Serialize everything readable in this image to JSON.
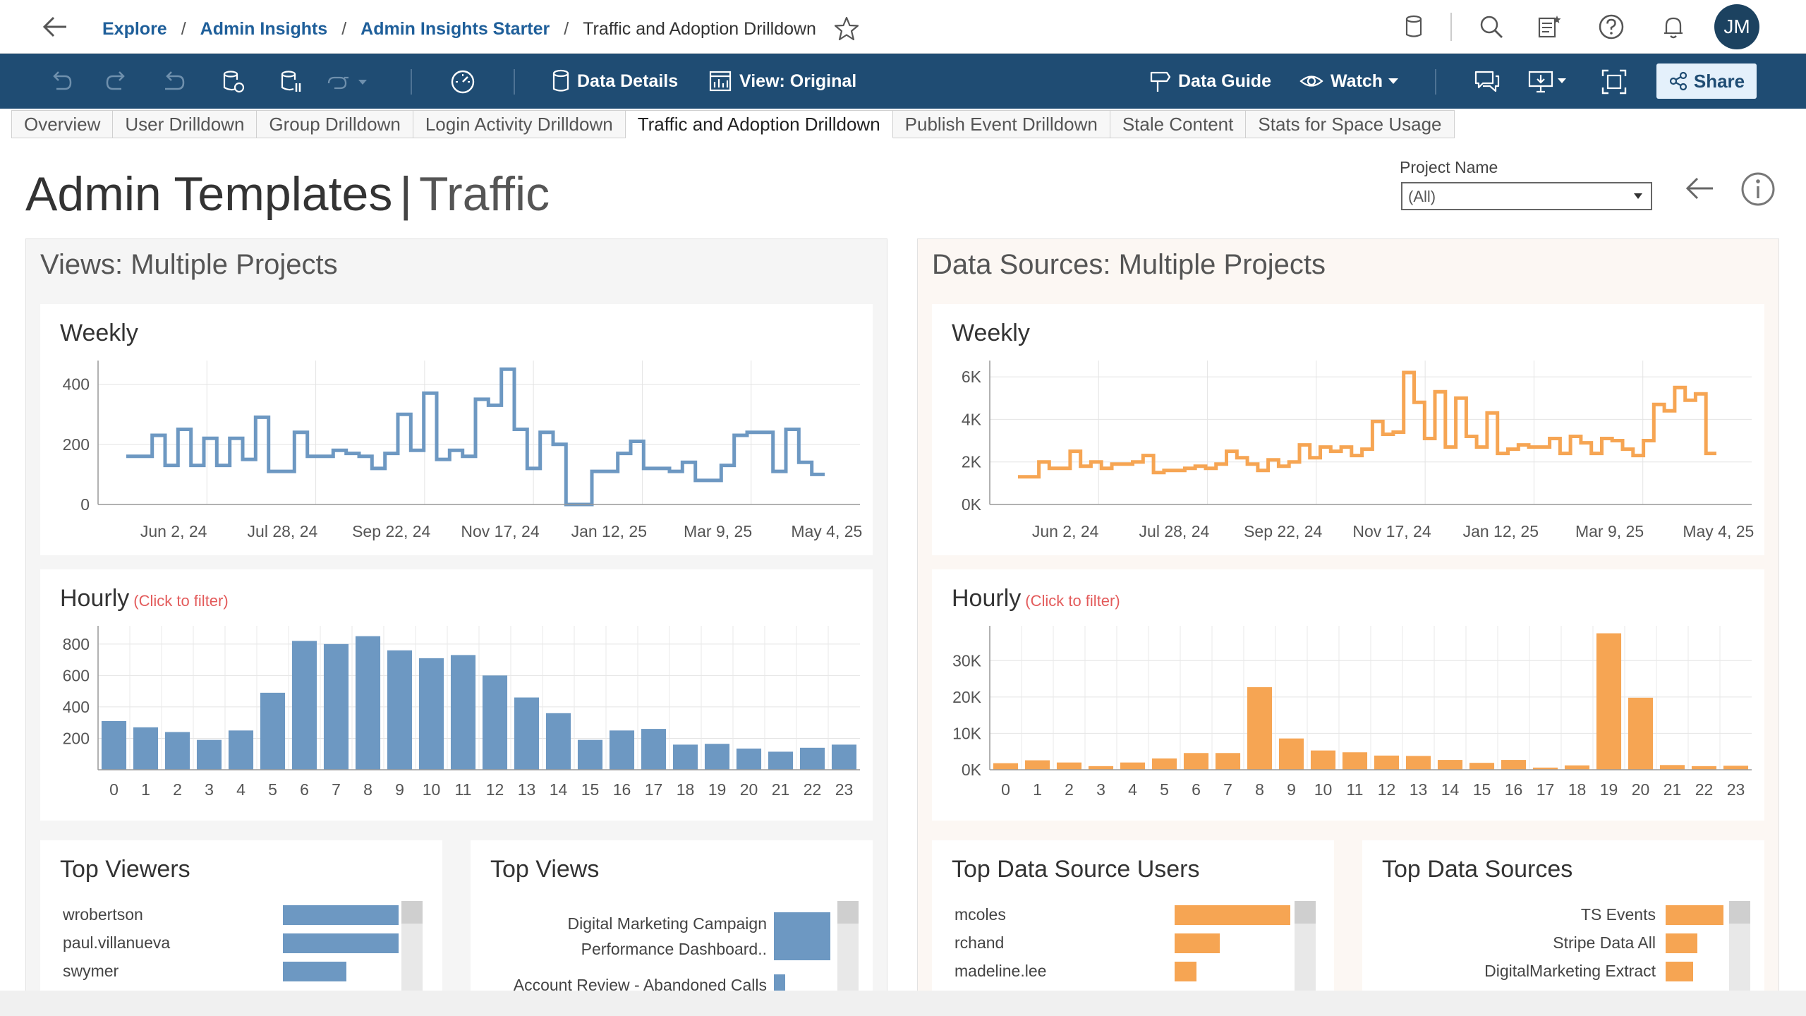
{
  "breadcrumb": {
    "items": [
      "Explore",
      "Admin Insights",
      "Admin Insights Starter"
    ],
    "current": "Traffic and Adoption Drilldown",
    "separator": "/"
  },
  "user": {
    "initials": "JM"
  },
  "toolbar": {
    "data_details": "Data Details",
    "view": "View: Original",
    "data_guide": "Data Guide",
    "watch": "Watch",
    "share": "Share"
  },
  "tabs": [
    {
      "label": "Overview",
      "active": false
    },
    {
      "label": "User Drilldown",
      "active": false
    },
    {
      "label": "Group Drilldown",
      "active": false
    },
    {
      "label": "Login Activity Drilldown",
      "active": false
    },
    {
      "label": "Traffic and Adoption Drilldown",
      "active": true
    },
    {
      "label": "Publish Event Drilldown",
      "active": false
    },
    {
      "label": "Stale Content",
      "active": false
    },
    {
      "label": "Stats for Space Usage",
      "active": false
    }
  ],
  "dashboard": {
    "title": "Admin Templates",
    "title_sep": "|",
    "subtitle": "Traffic",
    "project_filter": {
      "label": "Project Name",
      "value": "(All)"
    }
  },
  "colors": {
    "blue": "#6d98c2",
    "orange": "#f6a553",
    "navy": "#1f4c73",
    "link": "#1f5f9a"
  },
  "views": {
    "title": "Views: Multiple Projects",
    "weekly_title": "Weekly",
    "hourly_title": "Hourly",
    "hourly_hint": "(Click to filter)",
    "top_viewers_title": "Top Viewers",
    "top_viewers": [
      {
        "name": "wrobertson",
        "value": 100
      },
      {
        "name": "paul.villanueva",
        "value": 100
      },
      {
        "name": "swymer",
        "value": 55
      }
    ],
    "top_views_title": "Top Views",
    "top_views": [
      {
        "name": "Digital Marketing Campaign",
        "name2": "Performance Dashboard..",
        "value": 100
      },
      {
        "name": "Account Review - Abandoned Calls",
        "name2": "",
        "value": 20
      }
    ]
  },
  "datasources": {
    "title": "Data Sources: Multiple Projects",
    "weekly_title": "Weekly",
    "hourly_title": "Hourly",
    "hourly_hint": "(Click to filter)",
    "top_users_title": "Top Data Source Users",
    "top_users": [
      {
        "name": "mcoles",
        "value": 100
      },
      {
        "name": "rchand",
        "value": 39
      },
      {
        "name": "madeline.lee",
        "value": 19
      }
    ],
    "top_sources_title": "Top Data Sources",
    "top_sources": [
      {
        "name": "TS Events",
        "value": 100
      },
      {
        "name": "Stripe Data All",
        "value": 55
      },
      {
        "name": "DigitalMarketing Extract",
        "value": 47
      }
    ]
  },
  "chart_data": [
    {
      "id": "views-weekly",
      "type": "line",
      "title": "Weekly",
      "step": true,
      "color": "#6d98c2",
      "ylim": [
        0,
        460
      ],
      "yticks": [
        0,
        200,
        400
      ],
      "ytick_labels": [
        "0",
        "200",
        "400"
      ],
      "x_tick_labels": [
        "Jun 2, 24",
        "Jul 28, 24",
        "Sep 22, 24",
        "Nov 17, 24",
        "Jan 12, 25",
        "Mar 9, 25",
        "May 4, 25"
      ],
      "values": [
        160,
        160,
        230,
        130,
        250,
        130,
        220,
        130,
        220,
        150,
        290,
        110,
        110,
        240,
        160,
        160,
        180,
        170,
        160,
        120,
        170,
        300,
        180,
        370,
        150,
        180,
        160,
        350,
        330,
        450,
        250,
        120,
        240,
        200,
        0,
        0,
        110,
        110,
        170,
        210,
        120,
        120,
        110,
        140,
        80,
        80,
        130,
        230,
        240,
        240,
        110,
        250,
        140,
        100
      ]
    },
    {
      "id": "ds-weekly",
      "type": "line",
      "title": "Weekly",
      "step": true,
      "color": "#f6a553",
      "ylim": [
        0,
        6500
      ],
      "yticks": [
        0,
        2000,
        4000,
        6000
      ],
      "ytick_labels": [
        "0K",
        "2K",
        "4K",
        "6K"
      ],
      "x_tick_labels": [
        "Jun 2, 24",
        "Jul 28, 24",
        "Sep 22, 24",
        "Nov 17, 24",
        "Jan 12, 25",
        "Mar 9, 25",
        "May 4, 25"
      ],
      "values": [
        1300,
        1300,
        2000,
        1700,
        1700,
        2500,
        1800,
        2000,
        1700,
        1900,
        1900,
        2000,
        2300,
        1500,
        1600,
        1600,
        1700,
        1800,
        1700,
        1900,
        2500,
        2200,
        1900,
        1600,
        2100,
        1800,
        2000,
        2800,
        2200,
        2700,
        2500,
        2700,
        2300,
        2600,
        3900,
        3300,
        3400,
        6200,
        4800,
        3100,
        5300,
        2700,
        5000,
        3200,
        2700,
        4300,
        2400,
        2600,
        2800,
        2700,
        2700,
        3100,
        2400,
        3200,
        2900,
        2400,
        3100,
        3000,
        2600,
        2300,
        3000,
        4700,
        4400,
        5500,
        4900,
        5200,
        2400
      ]
    },
    {
      "id": "views-hourly",
      "type": "bar",
      "title": "Hourly",
      "color": "#6d98c2",
      "ylim": [
        0,
        880
      ],
      "yticks": [
        200,
        400,
        600,
        800
      ],
      "ytick_labels": [
        "200",
        "400",
        "600",
        "800"
      ],
      "categories": [
        "0",
        "1",
        "2",
        "3",
        "4",
        "5",
        "6",
        "7",
        "8",
        "9",
        "10",
        "11",
        "12",
        "13",
        "14",
        "15",
        "16",
        "17",
        "18",
        "19",
        "20",
        "21",
        "22",
        "23"
      ],
      "values": [
        310,
        270,
        240,
        190,
        250,
        490,
        820,
        800,
        850,
        760,
        710,
        730,
        600,
        460,
        360,
        190,
        250,
        260,
        160,
        165,
        135,
        115,
        140,
        160
      ]
    },
    {
      "id": "ds-hourly",
      "type": "bar",
      "title": "Hourly",
      "color": "#f6a553",
      "ylim": [
        0,
        38000
      ],
      "yticks": [
        0,
        10000,
        20000,
        30000
      ],
      "ytick_labels": [
        "0K",
        "10K",
        "20K",
        "30K"
      ],
      "categories": [
        "0",
        "1",
        "2",
        "3",
        "4",
        "5",
        "6",
        "7",
        "8",
        "9",
        "10",
        "11",
        "12",
        "13",
        "14",
        "15",
        "16",
        "17",
        "18",
        "19",
        "20",
        "21",
        "22",
        "23"
      ],
      "values": [
        1800,
        2600,
        2000,
        1000,
        2000,
        3100,
        4600,
        4600,
        22700,
        8600,
        5300,
        4800,
        3900,
        3800,
        2700,
        1900,
        2700,
        600,
        1200,
        37500,
        19800,
        1300,
        1000,
        1100
      ]
    }
  ]
}
